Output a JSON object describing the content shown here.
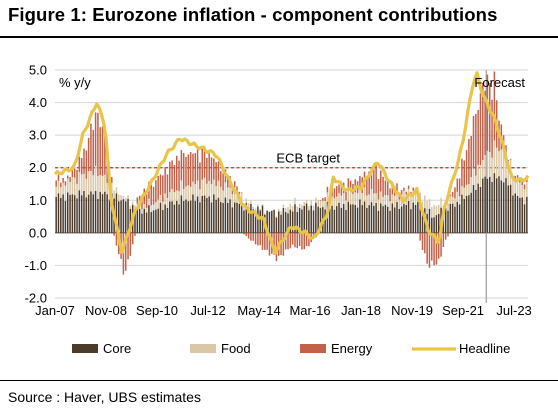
{
  "title": "Figure 1: Eurozone inflation - component contributions",
  "source": "Source : Haver, UBS estimates",
  "colors": {
    "core": "#4a3b2c",
    "food": "#d9c7a8",
    "energy": "#c26148",
    "headline": "#e9c44a",
    "ecb_line": "#c0302b",
    "grid": "#d4d4d4",
    "forecast_line": "#9a9a9a"
  },
  "chart_data": {
    "type": "bar",
    "stacked": true,
    "ylabel": "% y/y",
    "ylim": [
      -2.0,
      5.0
    ],
    "yticks": [
      "-2.0",
      "-1.0",
      "0.0",
      "1.0",
      "2.0",
      "3.0",
      "4.0",
      "5.0"
    ],
    "x_start": "Jan-07",
    "x_end": "Dec-23",
    "xtick_labels": [
      "Jan-07",
      "Nov-08",
      "Sep-10",
      "Jul-12",
      "May-14",
      "Mar-16",
      "Jan-18",
      "Nov-19",
      "Sep-21",
      "Jul-23"
    ],
    "grid": true,
    "legend_position": "bottom",
    "annotations": {
      "ecb_target_label": "ECB target",
      "ecb_target_value": 2.0,
      "forecast_label": "Forecast",
      "forecast_start": "Jul-22"
    },
    "series_labels": {
      "core": "Core",
      "food": "Food",
      "energy": "Energy",
      "headline": "Headline"
    },
    "series_knots": {
      "core": [
        [
          2007.0,
          1.1
        ],
        [
          2008.0,
          1.2
        ],
        [
          2008.8,
          1.2
        ],
        [
          2009.5,
          1.0
        ],
        [
          2010.0,
          0.7
        ],
        [
          2010.5,
          0.7
        ],
        [
          2011.5,
          1.0
        ],
        [
          2012.5,
          1.1
        ],
        [
          2013.0,
          1.0
        ],
        [
          2014.0,
          0.8
        ],
        [
          2015.0,
          0.6
        ],
        [
          2016.0,
          0.8
        ],
        [
          2017.0,
          0.8
        ],
        [
          2018.0,
          0.9
        ],
        [
          2019.0,
          0.8
        ],
        [
          2020.0,
          0.9
        ],
        [
          2020.6,
          0.5
        ],
        [
          2021.0,
          0.7
        ],
        [
          2021.6,
          1.0
        ],
        [
          2022.0,
          1.3
        ],
        [
          2022.5,
          1.7
        ],
        [
          2023.0,
          1.7
        ],
        [
          2023.3,
          1.5
        ],
        [
          2023.6,
          1.1
        ],
        [
          2024.0,
          1.0
        ]
      ],
      "food": [
        [
          2007.0,
          0.3
        ],
        [
          2007.7,
          0.5
        ],
        [
          2008.5,
          0.7
        ],
        [
          2009.0,
          0.3
        ],
        [
          2009.5,
          0.1
        ],
        [
          2010.0,
          0.1
        ],
        [
          2010.5,
          0.2
        ],
        [
          2011.5,
          0.4
        ],
        [
          2012.5,
          0.5
        ],
        [
          2013.5,
          0.4
        ],
        [
          2014.0,
          0.1
        ],
        [
          2014.8,
          0.0
        ],
        [
          2015.5,
          0.2
        ],
        [
          2016.0,
          0.1
        ],
        [
          2017.0,
          0.3
        ],
        [
          2018.0,
          0.4
        ],
        [
          2019.0,
          0.3
        ],
        [
          2020.0,
          0.4
        ],
        [
          2020.8,
          0.3
        ],
        [
          2021.0,
          0.2
        ],
        [
          2021.7,
          0.3
        ],
        [
          2022.3,
          0.6
        ],
        [
          2022.8,
          0.9
        ],
        [
          2023.2,
          0.9
        ],
        [
          2023.5,
          0.5
        ],
        [
          2024.0,
          0.4
        ]
      ],
      "energy": [
        [
          2007.0,
          0.2
        ],
        [
          2007.5,
          0.1
        ],
        [
          2008.0,
          0.6
        ],
        [
          2008.5,
          1.8
        ],
        [
          2008.8,
          1.4
        ],
        [
          2009.0,
          0.3
        ],
        [
          2009.5,
          -1.3
        ],
        [
          2010.0,
          0.3
        ],
        [
          2010.5,
          0.6
        ],
        [
          2011.0,
          0.8
        ],
        [
          2011.5,
          1.0
        ],
        [
          2012.5,
          0.9
        ],
        [
          2013.0,
          0.5
        ],
        [
          2013.6,
          0.1
        ],
        [
          2014.0,
          -0.2
        ],
        [
          2015.0,
          -0.8
        ],
        [
          2015.5,
          -0.4
        ],
        [
          2016.0,
          -0.5
        ],
        [
          2016.5,
          0.0
        ],
        [
          2017.0,
          0.3
        ],
        [
          2017.5,
          0.3
        ],
        [
          2018.0,
          0.4
        ],
        [
          2018.5,
          0.8
        ],
        [
          2019.0,
          0.4
        ],
        [
          2019.5,
          0.1
        ],
        [
          2020.0,
          0.1
        ],
        [
          2020.4,
          -1.0
        ],
        [
          2020.8,
          -0.9
        ],
        [
          2021.0,
          -0.3
        ],
        [
          2021.5,
          0.5
        ],
        [
          2022.0,
          1.5
        ],
        [
          2022.4,
          2.3
        ],
        [
          2022.8,
          1.9
        ],
        [
          2023.0,
          0.8
        ],
        [
          2023.3,
          0.0
        ],
        [
          2023.6,
          0.1
        ],
        [
          2024.0,
          0.2
        ]
      ],
      "headline": [
        [
          2007.0,
          1.8
        ],
        [
          2007.7,
          2.0
        ],
        [
          2008.0,
          3.0
        ],
        [
          2008.5,
          4.0
        ],
        [
          2008.8,
          3.3
        ],
        [
          2009.0,
          1.1
        ],
        [
          2009.4,
          -0.6
        ],
        [
          2009.9,
          0.7
        ],
        [
          2010.5,
          1.6
        ],
        [
          2011.0,
          2.4
        ],
        [
          2011.5,
          2.9
        ],
        [
          2012.0,
          2.7
        ],
        [
          2012.8,
          2.4
        ],
        [
          2013.2,
          1.7
        ],
        [
          2013.8,
          0.8
        ],
        [
          2014.5,
          0.4
        ],
        [
          2014.9,
          -0.6
        ],
        [
          2015.5,
          0.2
        ],
        [
          2016.0,
          0.0
        ],
        [
          2016.3,
          -0.2
        ],
        [
          2016.8,
          0.6
        ],
        [
          2017.0,
          1.7
        ],
        [
          2017.5,
          1.3
        ],
        [
          2018.0,
          1.4
        ],
        [
          2018.6,
          2.2
        ],
        [
          2019.0,
          1.6
        ],
        [
          2019.5,
          1.0
        ],
        [
          2020.0,
          1.3
        ],
        [
          2020.4,
          0.1
        ],
        [
          2020.8,
          -0.3
        ],
        [
          2021.0,
          0.8
        ],
        [
          2021.5,
          2.2
        ],
        [
          2021.7,
          3.0
        ],
        [
          2022.0,
          4.5
        ],
        [
          2022.15,
          4.9
        ],
        [
          2022.4,
          4.2
        ],
        [
          2022.8,
          3.5
        ],
        [
          2023.1,
          2.7
        ],
        [
          2023.4,
          1.7
        ],
        [
          2023.7,
          1.6
        ],
        [
          2024.0,
          1.7
        ]
      ]
    }
  }
}
